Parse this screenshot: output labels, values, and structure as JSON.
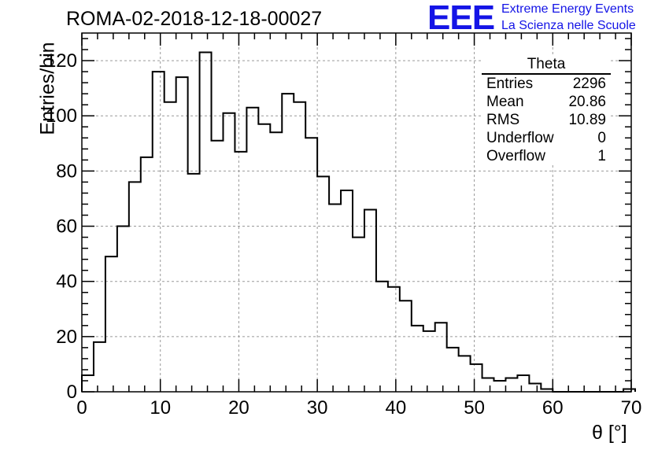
{
  "title": "ROMA-02-2018-12-18-00027",
  "logo": {
    "mark": "EEE",
    "line1": "Extreme Energy Events",
    "line2": "La Scienza nelle Scuole",
    "color": "#1414e6"
  },
  "stats": {
    "name": "Theta",
    "rows": [
      {
        "label": "Entries",
        "value": "2296"
      },
      {
        "label": "Mean",
        "value": "20.86"
      },
      {
        "label": "RMS",
        "value": "10.89"
      },
      {
        "label": "Underflow",
        "value": "0"
      },
      {
        "label": "Overflow",
        "value": "1"
      }
    ]
  },
  "chart_data": {
    "type": "bar",
    "histogram": true,
    "title": "ROMA-02-2018-12-18-00027",
    "xlabel": "θ [°]",
    "ylabel": "Entries/bin",
    "xlim": [
      0,
      70
    ],
    "ylim": [
      0,
      130
    ],
    "bin_width": 1.5,
    "xticks": [
      0,
      10,
      20,
      30,
      40,
      50,
      60,
      70
    ],
    "yticks": [
      0,
      20,
      40,
      60,
      80,
      100,
      120
    ],
    "grid": true,
    "values": [
      6,
      18,
      49,
      60,
      76,
      85,
      116,
      105,
      114,
      79,
      123,
      91,
      101,
      87,
      103,
      97,
      94,
      108,
      105,
      92,
      78,
      68,
      73,
      56,
      66,
      40,
      38,
      33,
      24,
      22,
      25,
      16,
      13,
      10,
      5,
      4,
      5,
      6,
      3,
      1,
      0,
      0,
      0,
      0,
      0,
      0,
      1
    ]
  }
}
